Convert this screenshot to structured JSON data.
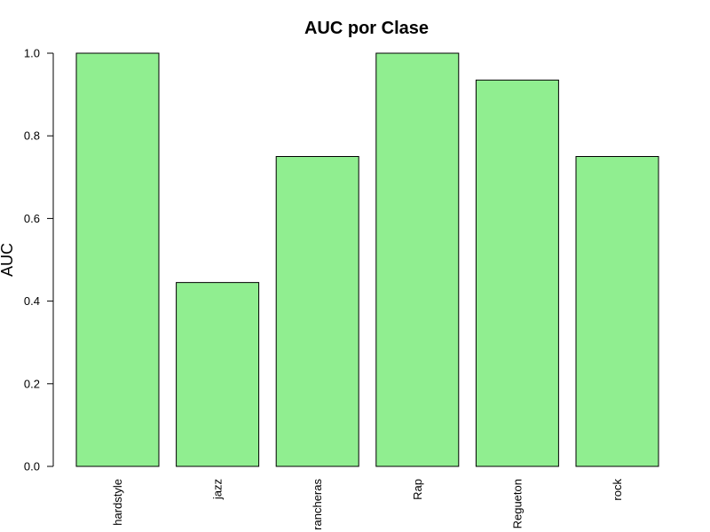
{
  "chart_data": {
    "type": "bar",
    "title": "AUC por Clase",
    "xlabel": "",
    "ylabel": "AUC",
    "categories": [
      "hardstyle",
      "jazz",
      "rancheras",
      "Rap",
      "Regueton",
      "rock"
    ],
    "values": [
      1.0,
      0.445,
      0.75,
      1.0,
      0.935,
      0.75
    ],
    "ylim": [
      0,
      1
    ],
    "yticks": [
      "0.0",
      "0.2",
      "0.4",
      "0.6",
      "0.8",
      "1.0"
    ],
    "bar_color": "#90EE90",
    "bar_stroke": "#000000",
    "grid": false,
    "legend": "none"
  }
}
